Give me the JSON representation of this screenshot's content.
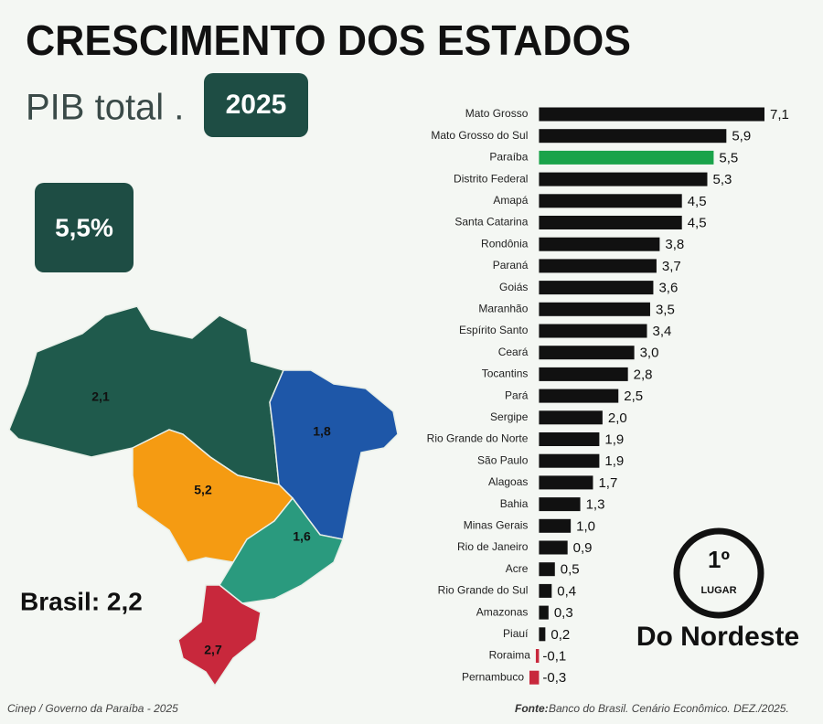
{
  "header": {
    "title": "CRESCIMENTO DOS ESTADOS",
    "subtitle": "PIB total .",
    "year": "2025",
    "highlight": "5,5%"
  },
  "map": {
    "regions": [
      {
        "value": 2.1,
        "label": "2,1",
        "color": "#1f5a4c"
      },
      {
        "value": 1.8,
        "label": "1,8",
        "color": "#1e57a8"
      },
      {
        "value": 5.2,
        "label": "5,2",
        "color": "#f59b12"
      },
      {
        "value": 1.6,
        "label": "1,6",
        "color": "#2a9a7e"
      },
      {
        "value": 2.7,
        "label": "2,7",
        "color": "#c8283c"
      }
    ],
    "national": "Brasil: 2,2"
  },
  "chart_data": {
    "type": "bar",
    "categories": [
      "Mato Grosso",
      "Mato Grosso do Sul",
      "Paraíba",
      "Distrito Federal",
      "Amapá",
      "Santa Catarina",
      "Rondônia",
      "Paraná",
      "Goiás",
      "Maranhão",
      "Espírito Santo",
      "Ceará",
      "Tocantins",
      "Pará",
      "Sergipe",
      "Rio Grande do Norte",
      "São Paulo",
      "Alagoas",
      "Bahia",
      "Minas Gerais",
      "Rio de Janeiro",
      "Acre",
      "Rio Grande do Sul",
      "Amazonas",
      "Piauí",
      "Roraima",
      "Pernambuco"
    ],
    "values": [
      7.1,
      5.9,
      5.5,
      5.3,
      4.5,
      4.5,
      3.8,
      3.7,
      3.6,
      3.5,
      3.4,
      3.0,
      2.8,
      2.5,
      2.0,
      1.9,
      1.9,
      1.7,
      1.3,
      1.0,
      0.9,
      0.5,
      0.4,
      0.3,
      0.2,
      -0.1,
      -0.3
    ],
    "value_labels": [
      "7,1",
      "5,9",
      "5,5",
      "5,3",
      "4,5",
      "4,5",
      "3,8",
      "3,7",
      "3,6",
      "3,5",
      "3,4",
      "3,0",
      "2,8",
      "2,5",
      "2,0",
      "1,9",
      "1,9",
      "1,7",
      "1,3",
      "1,0",
      "0,9",
      "0,5",
      "0,4",
      "0,3",
      "0,2",
      "-0,1",
      "-0,3"
    ],
    "colors": [
      "#111111",
      "#111111",
      "#1aa34a",
      "#111111",
      "#111111",
      "#111111",
      "#111111",
      "#111111",
      "#111111",
      "#111111",
      "#111111",
      "#111111",
      "#111111",
      "#111111",
      "#111111",
      "#111111",
      "#111111",
      "#111111",
      "#111111",
      "#111111",
      "#111111",
      "#111111",
      "#111111",
      "#111111",
      "#111111",
      "#c8283c",
      "#c8283c"
    ],
    "xlim": [
      -0.3,
      7.1
    ]
  },
  "badge": {
    "rank": "1º",
    "rank_word": "LUGAR",
    "region": "Do Nordeste"
  },
  "footer": {
    "credit": "Cinep / Governo da Paraíba - 2025",
    "source_label": "Fonte:",
    "source": "Banco do Brasil. Cenário Econômico. DEZ./2025."
  }
}
